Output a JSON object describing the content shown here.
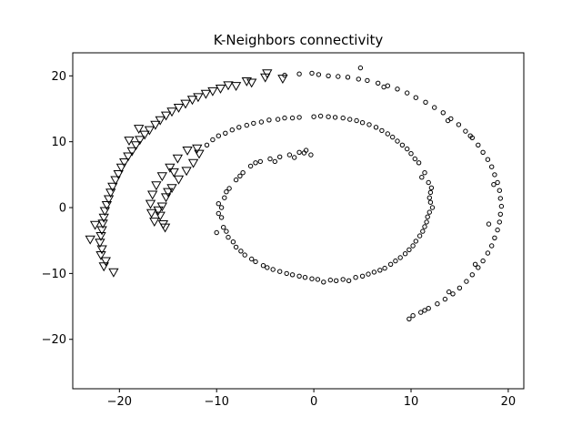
{
  "chart_data": {
    "type": "scatter",
    "title": "K-Neighbors connectivity",
    "xlabel": "",
    "ylabel": "",
    "xlim": [
      -24.8,
      21.6
    ],
    "ylim": [
      -27.5,
      23.5
    ],
    "xticks": [
      -20,
      -10,
      0,
      10,
      20
    ],
    "yticks": [
      -20,
      -10,
      0,
      10,
      20
    ],
    "xtick_labels": [
      "−20",
      "−10",
      "0",
      "10",
      "20"
    ],
    "ytick_labels": [
      "−20",
      "−10",
      "0",
      "10",
      "20"
    ],
    "grid": false,
    "legend": false,
    "series": [
      {
        "marker": "circle",
        "color": "#000000",
        "points": [
          [
            -1.0,
            8.3
          ],
          [
            -0.8,
            8.7
          ],
          [
            -1.5,
            8.4
          ],
          [
            -2.5,
            8.0
          ],
          [
            -3.5,
            7.7
          ],
          [
            -4.5,
            7.4
          ],
          [
            -5.5,
            7.0
          ],
          [
            -6.5,
            6.3
          ],
          [
            -7.3,
            5.3
          ],
          [
            -8.0,
            4.2
          ],
          [
            -8.7,
            2.9
          ],
          [
            -9.2,
            1.5
          ],
          [
            -9.5,
            0.0
          ],
          [
            -9.5,
            -1.5
          ],
          [
            -9.3,
            -3.0
          ],
          [
            -8.8,
            -4.5
          ],
          [
            -8.0,
            -6.0
          ],
          [
            -7.1,
            -7.2
          ],
          [
            -6.0,
            -8.2
          ],
          [
            -4.8,
            -9.1
          ],
          [
            -3.5,
            -9.7
          ],
          [
            -2.2,
            -10.2
          ],
          [
            -0.9,
            -10.6
          ],
          [
            0.4,
            -10.9
          ],
          [
            1.7,
            -11.0
          ],
          [
            3.0,
            -10.9
          ],
          [
            4.3,
            -10.6
          ],
          [
            5.6,
            -10.1
          ],
          [
            6.8,
            -9.5
          ],
          [
            7.9,
            -8.6
          ],
          [
            8.9,
            -7.6
          ],
          [
            9.8,
            -6.4
          ],
          [
            10.5,
            -5.1
          ],
          [
            11.2,
            -3.6
          ],
          [
            11.6,
            -2.2
          ],
          [
            11.9,
            -0.7
          ],
          [
            12.0,
            0.8
          ],
          [
            12.0,
            2.3
          ],
          [
            11.8,
            3.8
          ],
          [
            11.4,
            5.3
          ],
          [
            10.8,
            6.8
          ],
          [
            10.0,
            8.2
          ],
          [
            9.1,
            9.5
          ],
          [
            8.1,
            10.7
          ],
          [
            7.0,
            11.7
          ],
          [
            5.7,
            12.6
          ],
          [
            4.4,
            13.2
          ],
          [
            3.0,
            13.6
          ],
          [
            1.5,
            13.8
          ],
          [
            0.0,
            13.8
          ],
          [
            -1.5,
            13.7
          ],
          [
            -3.0,
            13.6
          ],
          [
            -4.6,
            13.3
          ],
          [
            -6.2,
            12.8
          ],
          [
            -7.7,
            12.2
          ],
          [
            -9.1,
            11.3
          ],
          [
            -10.4,
            10.3
          ],
          [
            -0.3,
            8.0
          ],
          [
            -2.0,
            7.6
          ],
          [
            -4.0,
            7.0
          ],
          [
            -6.0,
            6.8
          ],
          [
            -7.6,
            4.8
          ],
          [
            -9.0,
            2.4
          ],
          [
            -9.8,
            0.6
          ],
          [
            -9.8,
            -0.9
          ],
          [
            -9.0,
            -3.6
          ],
          [
            -7.5,
            -6.6
          ],
          [
            -5.2,
            -8.8
          ],
          [
            -2.8,
            -10.0
          ],
          [
            -0.2,
            -10.8
          ],
          [
            2.3,
            -11.1
          ],
          [
            5.0,
            -10.4
          ],
          [
            7.3,
            -9.2
          ],
          [
            9.4,
            -7.0
          ],
          [
            10.9,
            -4.3
          ],
          [
            11.7,
            -1.4
          ],
          [
            11.9,
            1.5
          ],
          [
            11.1,
            4.6
          ],
          [
            9.6,
            8.9
          ],
          [
            7.6,
            11.2
          ],
          [
            5.0,
            12.9
          ],
          [
            2.2,
            13.7
          ],
          [
            -2.2,
            13.6
          ],
          [
            -5.4,
            13.0
          ],
          [
            -8.4,
            11.8
          ],
          [
            -11.0,
            9.5
          ],
          [
            -10.0,
            -3.8
          ],
          [
            -8.3,
            -5.2
          ],
          [
            -6.4,
            -7.8
          ],
          [
            -4.2,
            -9.4
          ],
          [
            -1.5,
            -10.4
          ],
          [
            1.0,
            -11.3
          ],
          [
            3.6,
            -11.1
          ],
          [
            6.2,
            -9.8
          ],
          [
            8.4,
            -8.1
          ],
          [
            10.2,
            -5.8
          ],
          [
            11.4,
            -2.9
          ],
          [
            12.2,
            0.0
          ],
          [
            12.1,
            3.0
          ],
          [
            10.4,
            7.4
          ],
          [
            8.6,
            10.1
          ],
          [
            6.4,
            12.2
          ],
          [
            3.7,
            13.4
          ],
          [
            0.7,
            13.9
          ],
          [
            -3.7,
            13.4
          ],
          [
            -6.9,
            12.5
          ],
          [
            -9.8,
            10.9
          ],
          [
            1.5,
            20.0
          ],
          [
            3.5,
            19.8
          ],
          [
            5.5,
            19.3
          ],
          [
            7.6,
            18.5
          ],
          [
            9.6,
            17.4
          ],
          [
            11.5,
            16.0
          ],
          [
            13.3,
            14.4
          ],
          [
            14.9,
            12.6
          ],
          [
            16.3,
            10.6
          ],
          [
            17.4,
            8.4
          ],
          [
            18.3,
            6.2
          ],
          [
            18.9,
            3.8
          ],
          [
            19.2,
            1.4
          ],
          [
            19.2,
            -1.0
          ],
          [
            18.9,
            -3.4
          ],
          [
            18.3,
            -5.8
          ],
          [
            17.4,
            -8.1
          ],
          [
            16.3,
            -10.2
          ],
          [
            15.0,
            -12.2
          ],
          [
            13.5,
            -13.9
          ],
          [
            11.8,
            -15.3
          ],
          [
            10.2,
            -16.4
          ],
          [
            -0.2,
            20.4
          ],
          [
            -1.5,
            20.3
          ],
          [
            -3.0,
            20.1
          ],
          [
            0.5,
            20.2
          ],
          [
            2.5,
            19.9
          ],
          [
            4.6,
            19.5
          ],
          [
            6.6,
            18.9
          ],
          [
            8.6,
            18.0
          ],
          [
            10.5,
            16.7
          ],
          [
            12.4,
            15.2
          ],
          [
            14.1,
            13.5
          ],
          [
            15.6,
            11.6
          ],
          [
            16.9,
            9.5
          ],
          [
            17.9,
            7.3
          ],
          [
            18.6,
            5.0
          ],
          [
            19.1,
            2.6
          ],
          [
            19.3,
            0.2
          ],
          [
            19.1,
            -2.2
          ],
          [
            18.6,
            -4.6
          ],
          [
            17.9,
            -6.9
          ],
          [
            16.9,
            -9.1
          ],
          [
            15.7,
            -11.2
          ],
          [
            14.3,
            -13.1
          ],
          [
            12.7,
            -14.6
          ],
          [
            11.0,
            -15.9
          ],
          [
            9.8,
            -16.9
          ],
          [
            4.8,
            21.2
          ],
          [
            7.2,
            18.3
          ],
          [
            13.8,
            13.2
          ],
          [
            16.1,
            10.9
          ],
          [
            18.5,
            3.5
          ],
          [
            18.0,
            -2.5
          ],
          [
            16.6,
            -8.6
          ],
          [
            13.9,
            -12.8
          ],
          [
            11.4,
            -15.6
          ]
        ]
      },
      {
        "marker": "triangle-down",
        "color": "#000000",
        "points": [
          [
            -4.8,
            20.4
          ],
          [
            -3.2,
            19.6
          ],
          [
            -6.4,
            19.0
          ],
          [
            -8.0,
            18.5
          ],
          [
            -9.6,
            18.1
          ],
          [
            -11.1,
            17.3
          ],
          [
            -12.5,
            16.4
          ],
          [
            -13.9,
            15.2
          ],
          [
            -15.2,
            14.0
          ],
          [
            -16.3,
            12.6
          ],
          [
            -17.4,
            11.1
          ],
          [
            -18.3,
            9.5
          ],
          [
            -19.1,
            7.8
          ],
          [
            -19.8,
            6.1
          ],
          [
            -20.4,
            4.2
          ],
          [
            -20.9,
            2.3
          ],
          [
            -21.3,
            0.4
          ],
          [
            -21.6,
            -1.5
          ],
          [
            -21.8,
            -3.4
          ],
          [
            -22.0,
            -5.3
          ],
          [
            -21.9,
            -7.2
          ],
          [
            -21.6,
            -8.9
          ],
          [
            -20.6,
            -9.8
          ],
          [
            -5.0,
            19.8
          ],
          [
            -6.9,
            19.2
          ],
          [
            -8.8,
            18.6
          ],
          [
            -10.4,
            17.7
          ],
          [
            -11.9,
            16.8
          ],
          [
            -13.2,
            15.8
          ],
          [
            -14.6,
            14.6
          ],
          [
            -15.8,
            13.3
          ],
          [
            -16.9,
            11.8
          ],
          [
            -17.9,
            10.3
          ],
          [
            -18.7,
            8.6
          ],
          [
            -19.5,
            6.9
          ],
          [
            -20.1,
            5.1
          ],
          [
            -20.7,
            3.2
          ],
          [
            -21.1,
            1.3
          ],
          [
            -21.5,
            -0.5
          ],
          [
            -21.7,
            -2.4
          ],
          [
            -21.9,
            -4.3
          ],
          [
            -21.8,
            -6.3
          ],
          [
            -21.4,
            -8.1
          ],
          [
            -11.8,
            8.2
          ],
          [
            -12.4,
            6.8
          ],
          [
            -13.1,
            5.6
          ],
          [
            -13.9,
            4.3
          ],
          [
            -14.6,
            3.0
          ],
          [
            -15.2,
            1.6
          ],
          [
            -15.6,
            0.2
          ],
          [
            -15.8,
            -1.2
          ],
          [
            -15.5,
            -2.5
          ],
          [
            -13.0,
            8.7
          ],
          [
            -14.0,
            7.5
          ],
          [
            -14.8,
            6.1
          ],
          [
            -15.6,
            4.8
          ],
          [
            -16.2,
            3.4
          ],
          [
            -16.6,
            2.0
          ],
          [
            -16.8,
            0.6
          ],
          [
            -16.7,
            -0.8
          ],
          [
            -16.4,
            -2.1
          ],
          [
            -15.3,
            -3.0
          ],
          [
            -12.0,
            9.0
          ],
          [
            -14.4,
            5.4
          ],
          [
            -16.0,
            -0.4
          ],
          [
            -15.0,
            2.4
          ],
          [
            -19.0,
            10.2
          ],
          [
            -18.0,
            12.0
          ],
          [
            -22.5,
            -2.6
          ],
          [
            -23.0,
            -4.8
          ]
        ]
      }
    ]
  }
}
